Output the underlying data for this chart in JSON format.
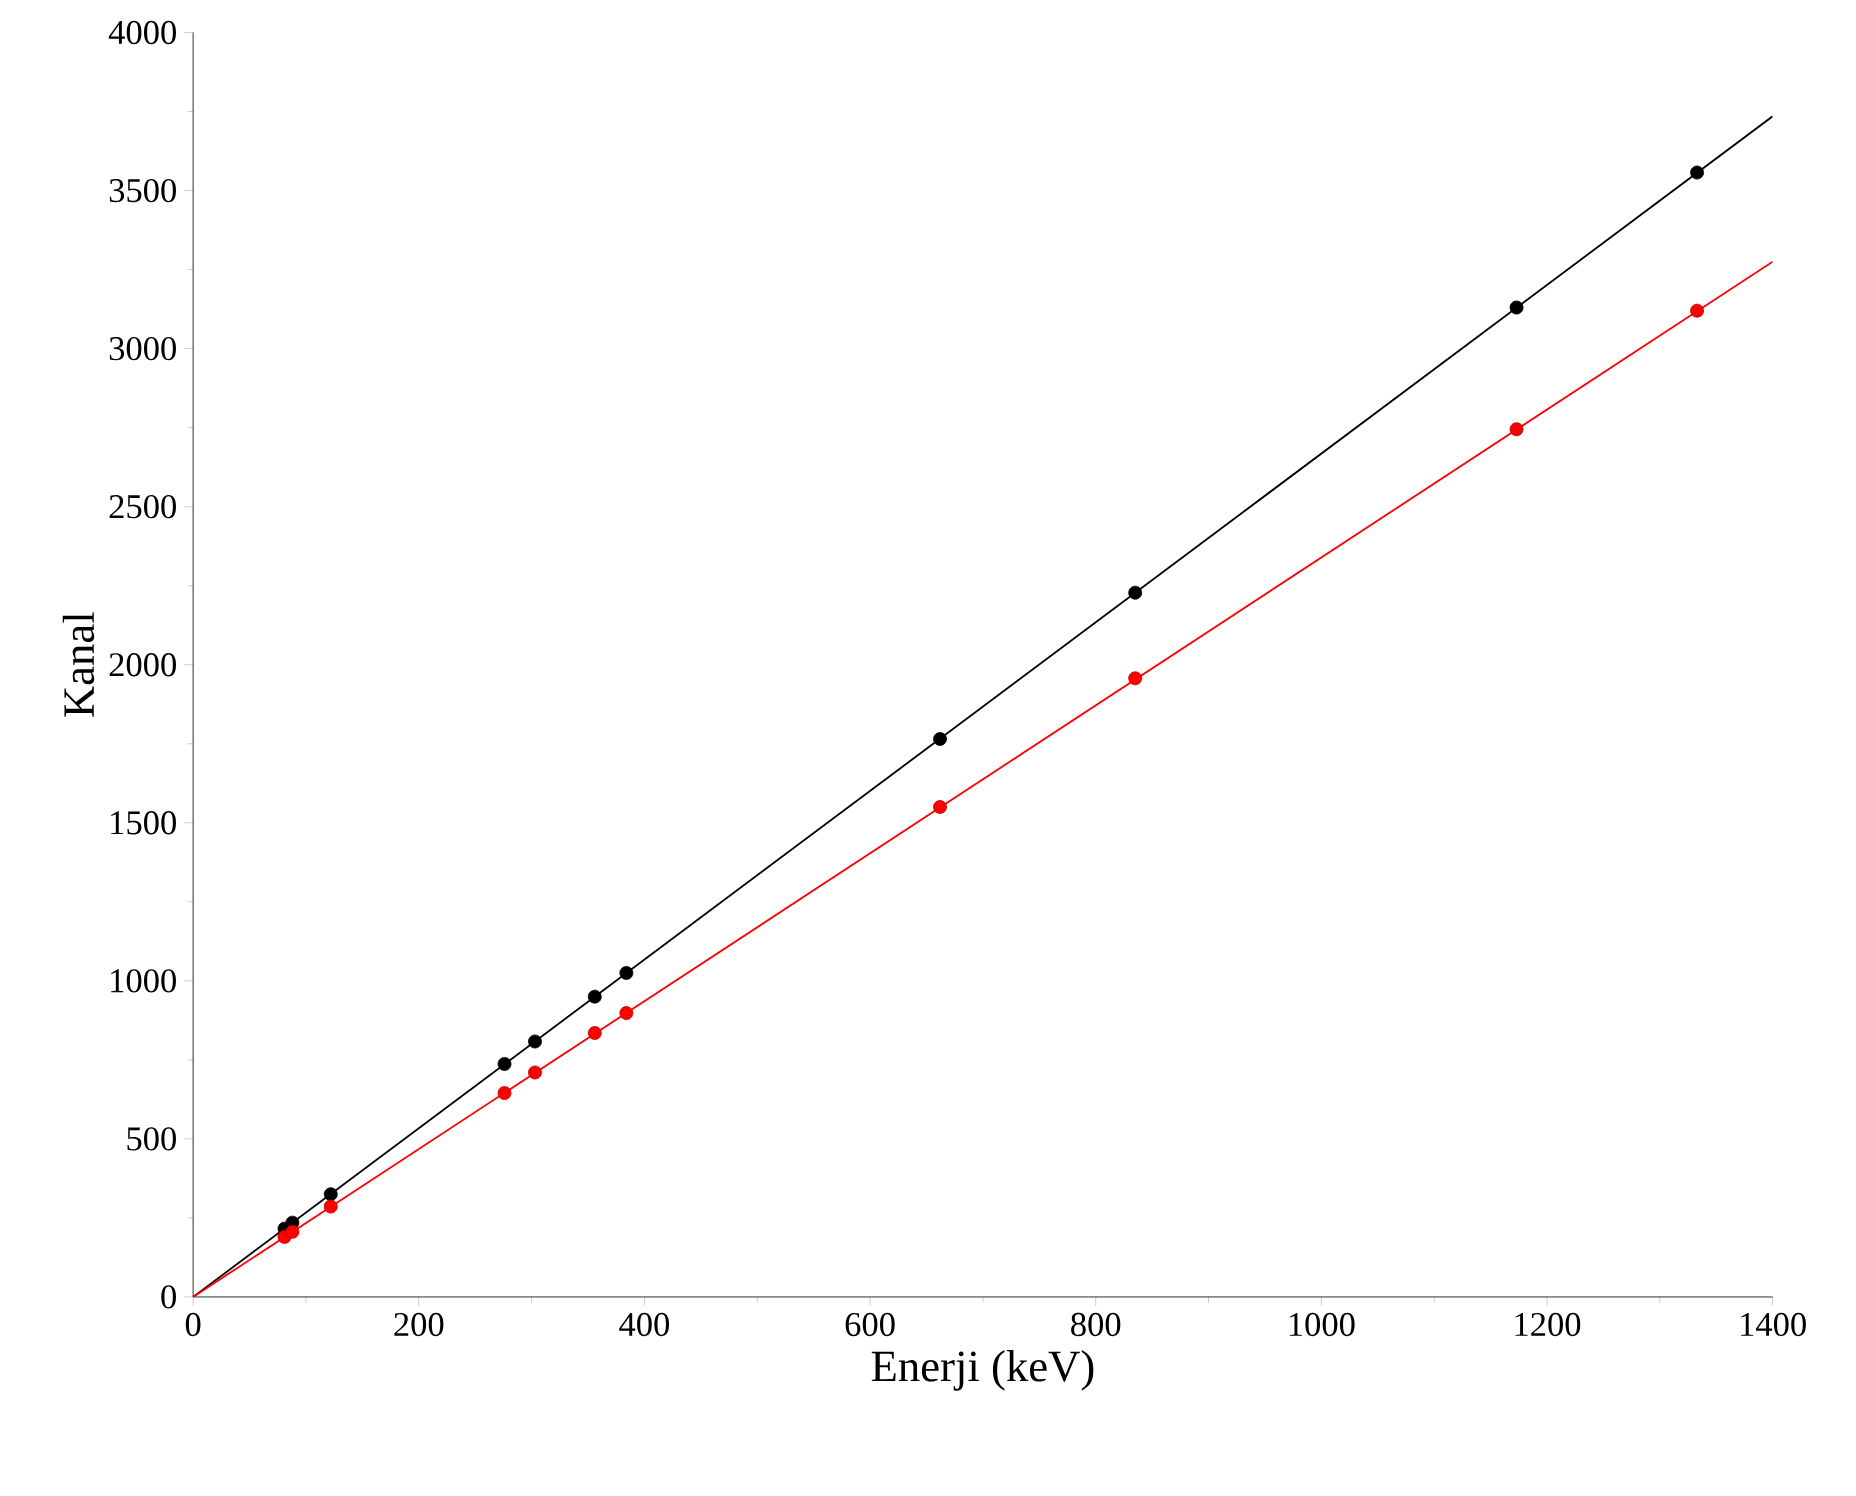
{
  "chart_data": {
    "type": "scatter",
    "xlabel": "Enerji (keV)",
    "ylabel": "Kanal",
    "xlim": [
      0,
      1400
    ],
    "ylim": [
      0,
      4000
    ],
    "xticks": [
      0,
      200,
      400,
      600,
      800,
      1000,
      1200,
      1400
    ],
    "yticks": [
      0,
      500,
      1000,
      1500,
      2000,
      2500,
      3000,
      3500,
      4000
    ],
    "grid": false,
    "series": [
      {
        "marker": "circle",
        "color": "#000000",
        "x": [
          81,
          88,
          122,
          276,
          303,
          356,
          384,
          662,
          835,
          1173,
          1333
        ],
        "values": [
          216,
          235,
          325,
          737,
          808,
          950,
          1025,
          1765,
          2228,
          3130,
          3557
        ]
      },
      {
        "marker": "circle",
        "color": "#ff0000",
        "x": [
          81,
          88,
          122,
          276,
          303,
          356,
          384,
          662,
          835,
          1173,
          1333
        ],
        "values": [
          190,
          206,
          286,
          645,
          710,
          835,
          898,
          1550,
          1957,
          2745,
          3120
        ]
      },
      {
        "type": "line",
        "color": "#000000",
        "x": [
          0,
          1400
        ],
        "values": [
          0,
          3735
        ]
      },
      {
        "type": "line",
        "color": "#ff0000",
        "x": [
          0,
          1400
        ],
        "values": [
          0,
          3275
        ]
      }
    ]
  }
}
